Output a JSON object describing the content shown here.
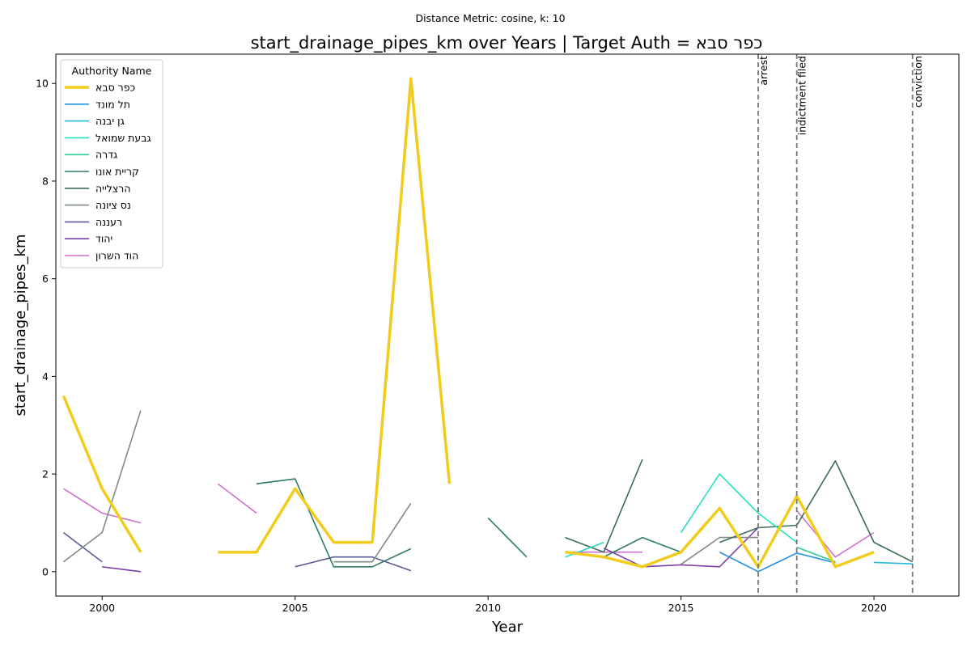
{
  "chart_data": {
    "type": "line",
    "suptitle": "Distance Metric: cosine, k: 10",
    "title": "start_drainage_pipes_km over Years | Target Auth = כפר סבא",
    "xlabel": "Year",
    "ylabel": "start_drainage_pipes_km",
    "xlim": [
      1998.8,
      2022.2
    ],
    "ylim": [
      -0.5,
      10.6
    ],
    "xticks": [
      2000,
      2005,
      2010,
      2015,
      2020
    ],
    "yticks": [
      0,
      2,
      4,
      6,
      8,
      10
    ],
    "grid": false,
    "legend": {
      "title": "Authority Name",
      "placement": "top-left"
    },
    "events": [
      {
        "x": 2017,
        "label": "arrest"
      },
      {
        "x": 2018,
        "label": "indictment filed"
      },
      {
        "x": 2021,
        "label": "conviction"
      }
    ],
    "series": [
      {
        "name": "כפר סבא",
        "color": "#f2cc1c",
        "width": 3.5,
        "target": true,
        "points": [
          [
            1999,
            3.6
          ],
          [
            2000,
            1.7
          ],
          [
            2001,
            0.4
          ],
          [
            2002,
            null
          ],
          [
            2003,
            0.4
          ],
          [
            2004,
            0.4
          ],
          [
            2005,
            1.7
          ],
          [
            2006,
            0.6
          ],
          [
            2007,
            0.6
          ],
          [
            2008,
            10.1
          ],
          [
            2009,
            1.8
          ],
          [
            2010,
            null
          ],
          [
            2011,
            null
          ],
          [
            2012,
            0.4
          ],
          [
            2013,
            0.3
          ],
          [
            2014,
            0.1
          ],
          [
            2015,
            0.4
          ],
          [
            2016,
            1.3
          ],
          [
            2017,
            0.1
          ],
          [
            2018,
            1.55
          ],
          [
            2019,
            0.1
          ],
          [
            2020,
            0.4
          ]
        ]
      },
      {
        "name": "תל מונד",
        "color": "#1f8fe0",
        "width": 1.6,
        "points": [
          [
            2016,
            0.4
          ],
          [
            2017,
            0.0
          ],
          [
            2018,
            0.38
          ],
          [
            2019,
            0.18
          ]
        ]
      },
      {
        "name": "גן יבנה",
        "color": "#22b8e0",
        "width": 1.6,
        "points": [
          [
            2020,
            0.19
          ],
          [
            2021,
            0.16
          ]
        ]
      },
      {
        "name": "גבעת שמואל",
        "color": "#22e0bb",
        "width": 1.6,
        "points": [
          [
            2012,
            0.3
          ],
          [
            2013,
            0.6
          ],
          [
            2014,
            null
          ],
          [
            2015,
            0.8
          ],
          [
            2016,
            2.0
          ],
          [
            2017,
            1.2
          ],
          [
            2018,
            0.6
          ]
        ]
      },
      {
        "name": "גדרה",
        "color": "#2ecc9a",
        "width": 1.6,
        "points": [
          [
            2018,
            0.5
          ],
          [
            2019,
            0.2
          ]
        ]
      },
      {
        "name": "קריית אונו",
        "color": "#2e7d60",
        "width": 1.6,
        "points": [
          [
            2004,
            1.8
          ],
          [
            2005,
            1.9
          ],
          [
            2006,
            0.1
          ],
          [
            2007,
            0.1
          ],
          [
            2008,
            0.47
          ],
          [
            2009,
            null
          ],
          [
            2010,
            1.1
          ],
          [
            2011,
            0.3
          ],
          [
            2012,
            null
          ],
          [
            2013,
            0.3
          ],
          [
            2014,
            0.7
          ],
          [
            2015,
            0.4
          ]
        ]
      },
      {
        "name": "הרצלייה",
        "color": "#3d6b55",
        "width": 1.6,
        "points": [
          [
            2012,
            0.7
          ],
          [
            2013,
            0.4
          ],
          [
            2014,
            2.3
          ],
          [
            2015,
            null
          ],
          [
            2016,
            0.6
          ],
          [
            2017,
            0.9
          ],
          [
            2018,
            0.95
          ],
          [
            2019,
            2.27
          ],
          [
            2020,
            0.6
          ],
          [
            2021,
            0.2
          ]
        ]
      },
      {
        "name": "נס ציונה",
        "color": "#7f8c86",
        "width": 1.6,
        "points": [
          [
            1999,
            0.2
          ],
          [
            2000,
            0.8
          ],
          [
            2001,
            3.3
          ],
          [
            2002,
            null
          ],
          [
            2006,
            0.2
          ],
          [
            2007,
            0.2
          ],
          [
            2008,
            1.4
          ],
          [
            2009,
            null
          ],
          [
            2015,
            0.15
          ],
          [
            2016,
            0.7
          ],
          [
            2017,
            0.7
          ]
        ]
      },
      {
        "name": "רעננה",
        "color": "#5a5a9a",
        "width": 1.6,
        "points": [
          [
            1999,
            0.8
          ],
          [
            2000,
            0.2
          ],
          [
            2001,
            null
          ],
          [
            2005,
            0.1
          ],
          [
            2006,
            0.3
          ],
          [
            2007,
            0.3
          ],
          [
            2008,
            0.02
          ]
        ]
      },
      {
        "name": "יהוד",
        "color": "#7b3fa6",
        "width": 1.6,
        "points": [
          [
            2000,
            0.1
          ],
          [
            2001,
            0.0
          ],
          [
            2002,
            null
          ],
          [
            2013,
            0.48
          ],
          [
            2014,
            0.1
          ],
          [
            2015,
            0.14
          ],
          [
            2016,
            0.1
          ],
          [
            2017,
            0.9
          ]
        ]
      },
      {
        "name": "הוד השרון",
        "color": "#cf6fd0",
        "width": 1.6,
        "points": [
          [
            1999,
            1.7
          ],
          [
            2000,
            1.2
          ],
          [
            2001,
            1.0
          ],
          [
            2002,
            null
          ],
          [
            2003,
            1.8
          ],
          [
            2004,
            1.2
          ],
          [
            2005,
            null
          ],
          [
            2012,
            0.4
          ],
          [
            2013,
            0.4
          ],
          [
            2014,
            0.4
          ],
          [
            2015,
            null
          ],
          [
            2018,
            1.25
          ],
          [
            2019,
            0.3
          ],
          [
            2020,
            0.8
          ]
        ]
      }
    ]
  }
}
